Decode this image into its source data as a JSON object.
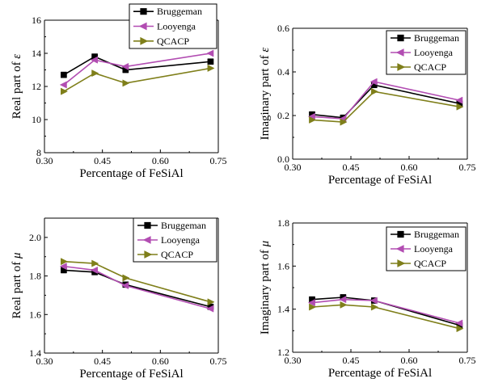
{
  "chart_data": [
    {
      "type": "line",
      "xlabel": "Percentage of FeSiAl",
      "ylabel": "Real part of ",
      "ysym": "ε",
      "xlim": [
        0.3,
        0.75
      ],
      "ylim": [
        8,
        16
      ],
      "xticks": [
        "0.30",
        "0.45",
        "0.60",
        "0.75"
      ],
      "yticks": [
        "8",
        "10",
        "12",
        "14",
        "16"
      ],
      "legend": "top-right",
      "x": [
        0.35,
        0.43,
        0.51,
        0.73
      ],
      "series": [
        {
          "name": "Bruggeman",
          "color": "#000000",
          "marker": "square",
          "values": [
            12.7,
            13.8,
            13.0,
            13.5
          ]
        },
        {
          "name": "Looyenga",
          "color": "#b24db2",
          "marker": "triangle-left",
          "values": [
            12.1,
            13.6,
            13.2,
            14.0
          ]
        },
        {
          "name": "QCACP",
          "color": "#7f7f1a",
          "marker": "triangle-right",
          "values": [
            11.7,
            12.8,
            12.2,
            13.1
          ]
        }
      ]
    },
    {
      "type": "line",
      "xlabel": "Percentage of FeSiAl",
      "ylabel": "Imaginary part of ",
      "ysym": "ε",
      "xlim": [
        0.3,
        0.75
      ],
      "ylim": [
        0.0,
        0.6
      ],
      "xticks": [
        "0.30",
        "0.45",
        "0.60",
        "0.75"
      ],
      "yticks": [
        "0.0",
        "0.2",
        "0.4",
        "0.6"
      ],
      "legend": "top-right",
      "x": [
        0.35,
        0.43,
        0.51,
        0.73
      ],
      "series": [
        {
          "name": "Bruggeman",
          "color": "#000000",
          "marker": "square",
          "values": [
            0.205,
            0.19,
            0.34,
            0.255
          ]
        },
        {
          "name": "Looyenga",
          "color": "#b24db2",
          "marker": "triangle-left",
          "values": [
            0.195,
            0.185,
            0.355,
            0.27
          ]
        },
        {
          "name": "QCACP",
          "color": "#7f7f1a",
          "marker": "triangle-right",
          "values": [
            0.18,
            0.17,
            0.31,
            0.24
          ]
        }
      ]
    },
    {
      "type": "line",
      "xlabel": "Percentage of FeSiAl",
      "ylabel": "Real part of ",
      "ysym": "μ",
      "xlim": [
        0.3,
        0.75
      ],
      "ylim": [
        1.4,
        2.1
      ],
      "xticks": [
        "0.30",
        "0.45",
        "0.60",
        "0.75"
      ],
      "yticks": [
        "1.4",
        "1.6",
        "1.8",
        "2.0"
      ],
      "legend": "top-right",
      "x": [
        0.35,
        0.43,
        0.51,
        0.73
      ],
      "series": [
        {
          "name": "Bruggeman",
          "color": "#000000",
          "marker": "square",
          "values": [
            1.83,
            1.82,
            1.755,
            1.64
          ]
        },
        {
          "name": "Looyenga",
          "color": "#b24db2",
          "marker": "triangle-left",
          "values": [
            1.85,
            1.83,
            1.75,
            1.63
          ]
        },
        {
          "name": "QCACP",
          "color": "#7f7f1a",
          "marker": "triangle-right",
          "values": [
            1.875,
            1.865,
            1.79,
            1.665
          ]
        }
      ]
    },
    {
      "type": "line",
      "xlabel": "Percentage of FeSiAl",
      "ylabel": "Imaginary part of ",
      "ysym": "μ",
      "xlim": [
        0.3,
        0.75
      ],
      "ylim": [
        1.2,
        1.8
      ],
      "xticks": [
        "0.30",
        "0.45",
        "0.60",
        "0.75"
      ],
      "yticks": [
        "1.2",
        "1.4",
        "1.6",
        "1.8"
      ],
      "legend": "top-right",
      "x": [
        0.35,
        0.43,
        0.51,
        0.73
      ],
      "series": [
        {
          "name": "Bruggeman",
          "color": "#000000",
          "marker": "square",
          "values": [
            1.445,
            1.455,
            1.44,
            1.325
          ]
        },
        {
          "name": "Looyenga",
          "color": "#b24db2",
          "marker": "triangle-left",
          "values": [
            1.43,
            1.445,
            1.44,
            1.335
          ]
        },
        {
          "name": "QCACP",
          "color": "#7f7f1a",
          "marker": "triangle-right",
          "values": [
            1.41,
            1.42,
            1.41,
            1.31
          ]
        }
      ]
    }
  ]
}
